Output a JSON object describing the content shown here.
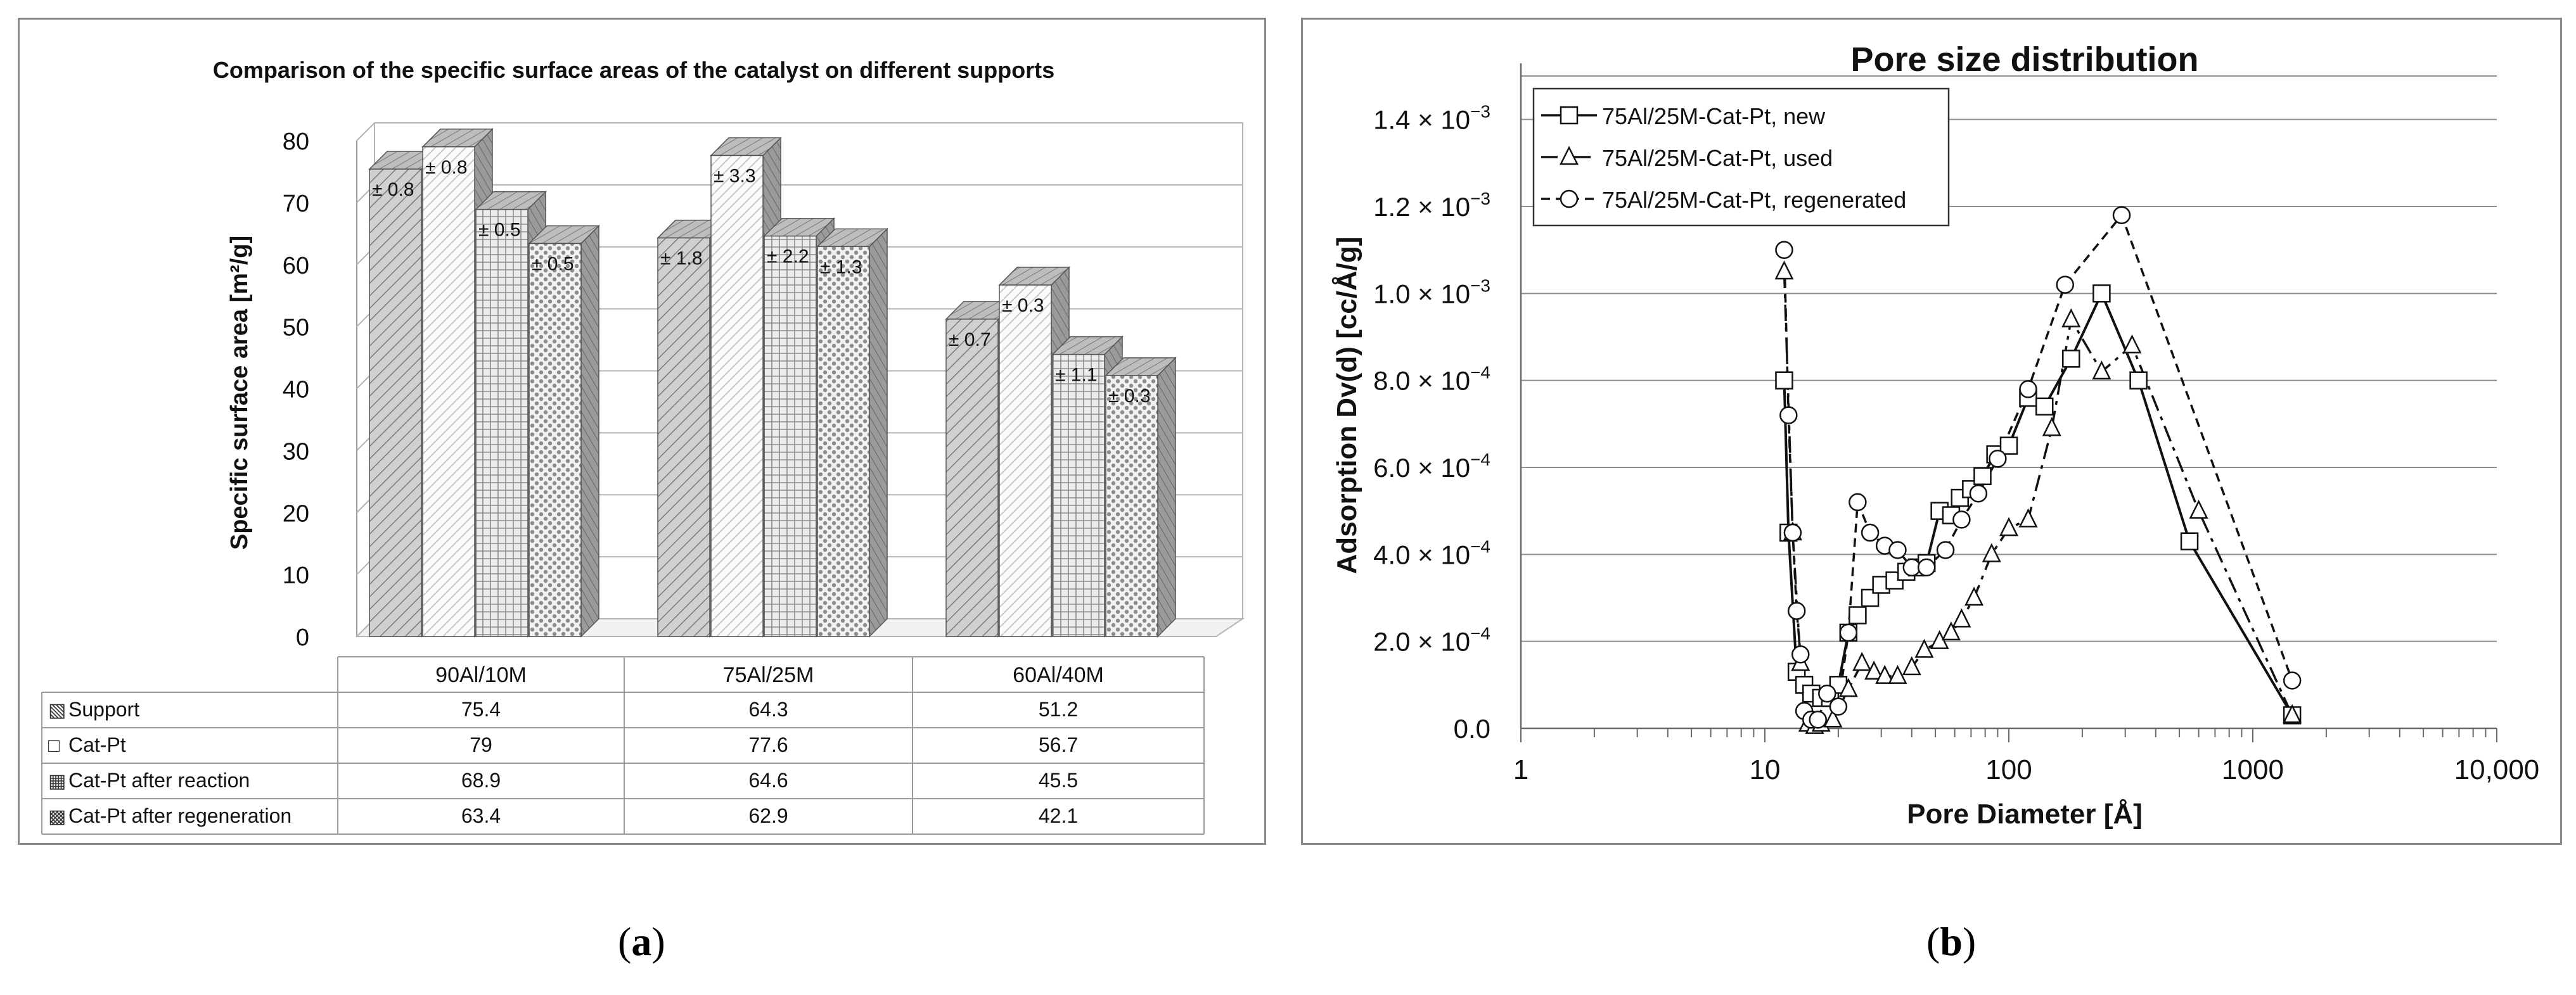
{
  "captions": {
    "a": "a",
    "b": "b"
  },
  "chart_data": [
    {
      "type": "bar",
      "title": "Comparison of the specific surface areas of the catalyst on different supports",
      "ylabel": "Specific surface area [m²/g]",
      "xlabel": "",
      "ylim": [
        0,
        80
      ],
      "yticks": [
        "0",
        "10",
        "20",
        "30",
        "40",
        "50",
        "60",
        "70",
        "80"
      ],
      "categories": [
        "90Al/10M",
        "75Al/25M",
        "60Al/40M"
      ],
      "series": [
        {
          "name": "Support",
          "values": [
            75.4,
            64.3,
            51.2
          ],
          "errors": [
            "± 0.8",
            "± 1.8",
            "± 0.7"
          ],
          "legend_mark": "▧",
          "fill": "#c4c4c4"
        },
        {
          "name": "Cat-Pt",
          "values": [
            79,
            77.6,
            56.7
          ],
          "errors": [
            "± 0.8",
            "± 3.3",
            "± 0.3"
          ],
          "legend_mark": "□",
          "fill": "#f6f6f6"
        },
        {
          "name": "Cat-Pt after reaction",
          "values": [
            68.9,
            64.6,
            45.5
          ],
          "errors": [
            "± 0.5",
            "± 2.2",
            "± 1.1"
          ],
          "legend_mark": "▦",
          "fill": "#dcdcdc"
        },
        {
          "name": "Cat-Pt after regeneration",
          "values": [
            63.4,
            62.9,
            42.1
          ],
          "errors": [
            "± 0.5",
            "± 1.3",
            "± 0.3"
          ],
          "legend_mark": "▩",
          "fill": "#eaeaea"
        }
      ],
      "table": [
        [
          "75.4",
          "64.3",
          "51.2"
        ],
        [
          "79",
          "77.6",
          "56.7"
        ],
        [
          "68.9",
          "64.6",
          "45.5"
        ],
        [
          "63.4",
          "62.9",
          "42.1"
        ]
      ]
    },
    {
      "type": "line",
      "title": "Pore size distribution",
      "xlabel": "Pore Diameter [Å]",
      "ylabel": "Adsorption Dv(d) [cc/Å/g]",
      "xscale": "log",
      "xlim": [
        1,
        10000
      ],
      "ylim": [
        0,
        0.0015
      ],
      "xticks": [
        {
          "v": 1,
          "label": "1"
        },
        {
          "v": 10,
          "label": "10"
        },
        {
          "v": 100,
          "label": "100"
        },
        {
          "v": 1000,
          "label": "1000"
        },
        {
          "v": 10000,
          "label": "10,000"
        }
      ],
      "yticks": [
        {
          "v": 0,
          "m": "0.0",
          "e": ""
        },
        {
          "v": 0.0002,
          "m": "2.0 × 10",
          "e": "−4"
        },
        {
          "v": 0.0004,
          "m": "4.0 × 10",
          "e": "−4"
        },
        {
          "v": 0.0006,
          "m": "6.0 × 10",
          "e": "−4"
        },
        {
          "v": 0.0008,
          "m": "8.0 × 10",
          "e": "−4"
        },
        {
          "v": 0.001,
          "m": "1.0 × 10",
          "e": "−3"
        },
        {
          "v": 0.0012,
          "m": "1.2 × 10",
          "e": "−3"
        },
        {
          "v": 0.0014,
          "m": "1.4 × 10",
          "e": "−3"
        }
      ],
      "legend_position": "top-left",
      "series": [
        {
          "name": "75Al/25M-Cat-Pt, new",
          "marker": "square",
          "line": "solid",
          "points": [
            [
              12,
              0.0008
            ],
            [
              12.5,
              0.00045
            ],
            [
              13.5,
              0.00013
            ],
            [
              14.5,
              0.0001
            ],
            [
              15.5,
              8e-05
            ],
            [
              17,
              7e-05
            ],
            [
              18.5,
              7e-05
            ],
            [
              20,
              0.0001
            ],
            [
              22,
              0.00022
            ],
            [
              24,
              0.00026
            ],
            [
              27,
              0.0003
            ],
            [
              30,
              0.00033
            ],
            [
              34,
              0.00034
            ],
            [
              38,
              0.00036
            ],
            [
              42,
              0.00037
            ],
            [
              46,
              0.00038
            ],
            [
              52,
              0.0005
            ],
            [
              58,
              0.00049
            ],
            [
              63,
              0.00053
            ],
            [
              70,
              0.00055
            ],
            [
              78,
              0.00058
            ],
            [
              88,
              0.00063
            ],
            [
              100,
              0.00065
            ],
            [
              120,
              0.00076
            ],
            [
              140,
              0.00074
            ],
            [
              180,
              0.00085
            ],
            [
              240,
              0.001
            ],
            [
              340,
              0.0008
            ],
            [
              550,
              0.00043
            ],
            [
              1450,
              3e-05
            ]
          ]
        },
        {
          "name": "75Al/25M-Cat-Pt, used",
          "marker": "triangle",
          "line": "dashdot",
          "points": [
            [
              12,
              0.00105
            ],
            [
              13,
              0.00045
            ],
            [
              14,
              0.00015
            ],
            [
              15,
              1e-05
            ],
            [
              16,
              5e-06
            ],
            [
              17,
              1e-05
            ],
            [
              19,
              2e-05
            ],
            [
              22,
              9e-05
            ],
            [
              25,
              0.00015
            ],
            [
              28,
              0.00013
            ],
            [
              31,
              0.00012
            ],
            [
              35,
              0.00012
            ],
            [
              40,
              0.00014
            ],
            [
              45,
              0.00018
            ],
            [
              52,
              0.0002
            ],
            [
              58,
              0.00022
            ],
            [
              64,
              0.00025
            ],
            [
              72,
              0.0003
            ],
            [
              85,
              0.0004
            ],
            [
              100,
              0.00046
            ],
            [
              120,
              0.00048
            ],
            [
              150,
              0.00069
            ],
            [
              180,
              0.00094
            ],
            [
              240,
              0.00082
            ],
            [
              320,
              0.00088
            ],
            [
              600,
              0.0005
            ],
            [
              1450,
              3e-05
            ]
          ]
        },
        {
          "name": "75Al/25M-Cat-Pt, regenerated",
          "marker": "circle",
          "line": "dashed",
          "points": [
            [
              12,
              0.0011
            ],
            [
              12.5,
              0.00072
            ],
            [
              13,
              0.00045
            ],
            [
              13.5,
              0.00027
            ],
            [
              14,
              0.00017
            ],
            [
              14.5,
              4e-05
            ],
            [
              15.5,
              2e-05
            ],
            [
              16.5,
              2e-05
            ],
            [
              18,
              8e-05
            ],
            [
              20,
              5e-05
            ],
            [
              22,
              0.00022
            ],
            [
              24,
              0.00052
            ],
            [
              27,
              0.00045
            ],
            [
              31,
              0.00042
            ],
            [
              35,
              0.00041
            ],
            [
              40,
              0.00037
            ],
            [
              46,
              0.00037
            ],
            [
              55,
              0.00041
            ],
            [
              64,
              0.00048
            ],
            [
              75,
              0.00054
            ],
            [
              90,
              0.00062
            ],
            [
              120,
              0.00078
            ],
            [
              170,
              0.00102
            ],
            [
              290,
              0.00118
            ],
            [
              1450,
              0.00011
            ]
          ]
        }
      ]
    }
  ]
}
